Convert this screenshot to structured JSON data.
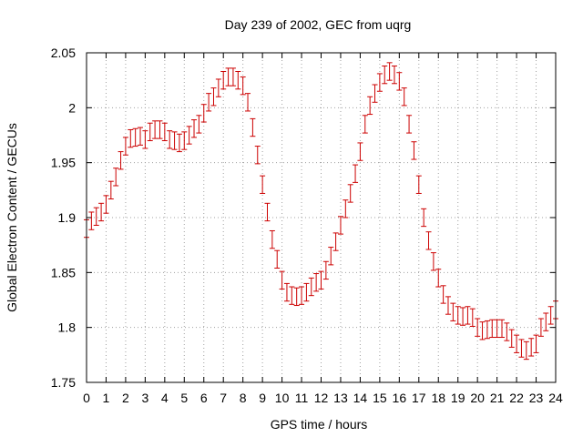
{
  "chart_data": {
    "type": "scatter",
    "title": "Day 239 of 2002, GEC from uqrg",
    "xlabel": "GPS time / hours",
    "ylabel": "Global Electron Content / GECUs",
    "xlim": [
      0,
      24
    ],
    "ylim": [
      1.75,
      2.05
    ],
    "grid": true,
    "xticks": [
      "0",
      "1",
      "2",
      "3",
      "4",
      "5",
      "6",
      "7",
      "8",
      "9",
      "10",
      "11",
      "12",
      "13",
      "14",
      "15",
      "16",
      "17",
      "18",
      "19",
      "20",
      "21",
      "22",
      "23",
      "24"
    ],
    "yticks": [
      "1.75",
      "1.8",
      "1.85",
      "1.9",
      "1.95",
      "2",
      "2.05"
    ],
    "error": 0.008,
    "series_color": "#cc0000",
    "series": [
      {
        "x": [
          0,
          0.25,
          0.5,
          0.75,
          1,
          1.25,
          1.5,
          1.75,
          2,
          2.25,
          2.5,
          2.75,
          3,
          3.25,
          3.5,
          3.75,
          4,
          4.25,
          4.5,
          4.75,
          5,
          5.25,
          5.5,
          5.75,
          6,
          6.25,
          6.5,
          6.75,
          7,
          7.25,
          7.5,
          7.75,
          8,
          8.25,
          8.5,
          8.75,
          9,
          9.25,
          9.5,
          9.75,
          10,
          10.25,
          10.5,
          10.75,
          11,
          11.25,
          11.5,
          11.75,
          12,
          12.25,
          12.5,
          12.75,
          13,
          13.25,
          13.5,
          13.75,
          14,
          14.25,
          14.5,
          14.75,
          15,
          15.25,
          15.5,
          15.75,
          16,
          16.25,
          16.5,
          16.75,
          17,
          17.25,
          17.5,
          17.75,
          18,
          18.25,
          18.5,
          18.75,
          19,
          19.25,
          19.5,
          19.75,
          20,
          20.25,
          20.5,
          20.75,
          21,
          21.25,
          21.5,
          21.75,
          22,
          22.25,
          22.5,
          22.75,
          23,
          23.25,
          23.5,
          23.75,
          24
        ],
        "y": [
          1.89,
          1.897,
          1.901,
          1.905,
          1.912,
          1.925,
          1.937,
          1.952,
          1.965,
          1.972,
          1.973,
          1.974,
          1.971,
          1.978,
          1.98,
          1.98,
          1.978,
          1.971,
          1.97,
          1.968,
          1.97,
          1.975,
          1.981,
          1.985,
          1.995,
          2.005,
          2.01,
          2.018,
          2.025,
          2.028,
          2.028,
          2.025,
          2.02,
          2.005,
          1.982,
          1.957,
          1.93,
          1.905,
          1.88,
          1.862,
          1.843,
          1.832,
          1.829,
          1.828,
          1.829,
          1.832,
          1.837,
          1.841,
          1.843,
          1.852,
          1.865,
          1.878,
          1.893,
          1.908,
          1.922,
          1.94,
          1.96,
          1.985,
          2.002,
          2.013,
          2.023,
          2.03,
          2.033,
          2.03,
          2.024,
          2.01,
          1.985,
          1.961,
          1.93,
          1.9,
          1.879,
          1.86,
          1.845,
          1.83,
          1.82,
          1.814,
          1.811,
          1.81,
          1.811,
          1.809,
          1.8,
          1.797,
          1.798,
          1.799,
          1.799,
          1.799,
          1.796,
          1.79,
          1.785,
          1.781,
          1.779,
          1.782,
          1.785,
          1.8,
          1.805,
          1.811,
          1.816
        ]
      }
    ]
  }
}
